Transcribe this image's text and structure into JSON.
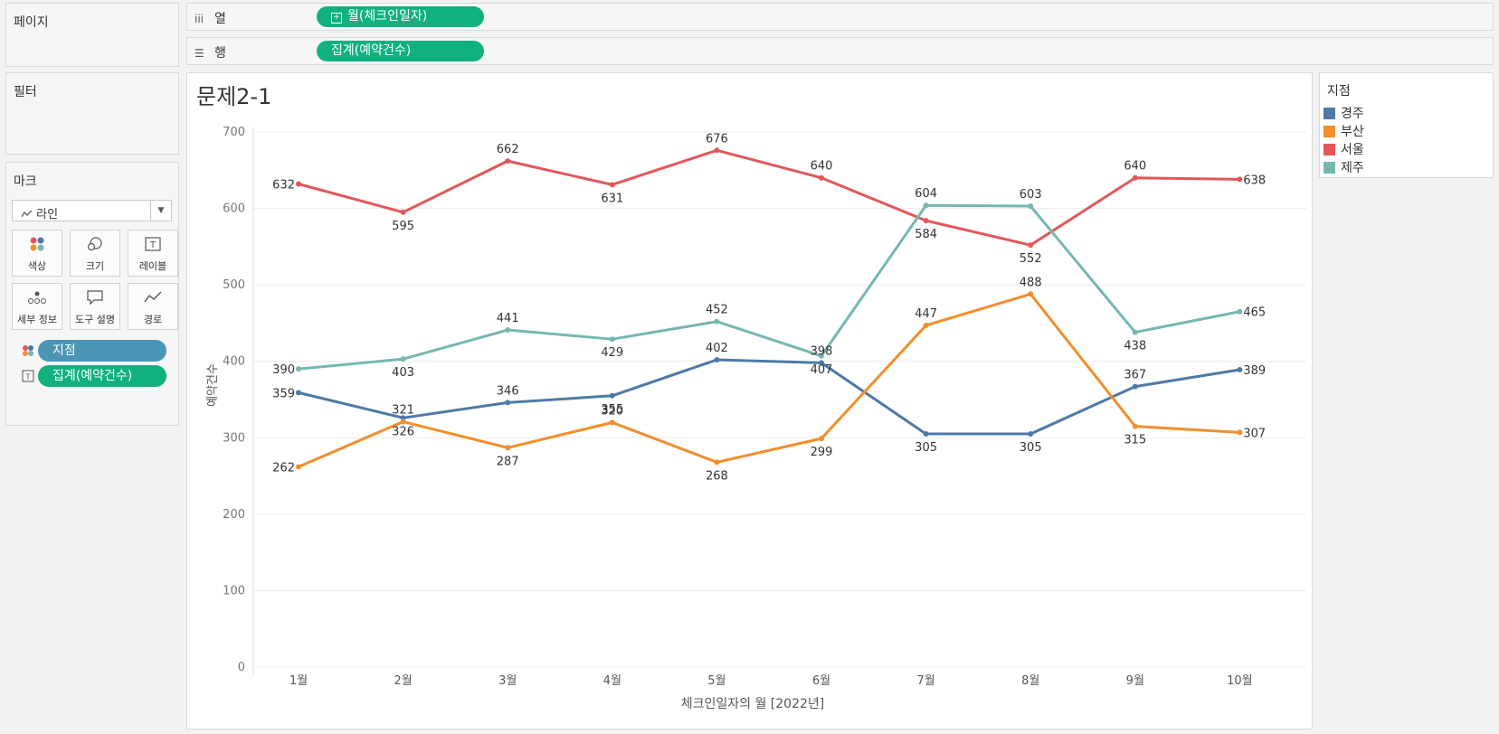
{
  "panes": {
    "pages": "페이지",
    "filters": "필터",
    "marks": "마크"
  },
  "shelves": {
    "columns": {
      "label": "열",
      "icon": "columns-icon",
      "pill": "월(체크인일자)"
    },
    "rows": {
      "label": "행",
      "icon": "rows-icon",
      "pill": "집계(예약건수)"
    }
  },
  "marks": {
    "type": "라인",
    "buttons": [
      "색상",
      "크기",
      "레이블",
      "세부 정보",
      "도구 설명",
      "경로"
    ],
    "fields": [
      "지점",
      "집계(예약건수)"
    ]
  },
  "legend": {
    "title": "지점",
    "items": [
      {
        "name": "경주",
        "color": "#4e79a7"
      },
      {
        "name": "부산",
        "color": "#f28e2b"
      },
      {
        "name": "서울",
        "color": "#e15759"
      },
      {
        "name": "제주",
        "color": "#76b7b2"
      }
    ]
  },
  "chart_data": {
    "type": "line",
    "title": "문제2-1",
    "xlabel": "체크인일자의 월 [2022년]",
    "ylabel": "예약건수",
    "categories": [
      "1월",
      "2월",
      "3월",
      "4월",
      "5월",
      "6월",
      "7월",
      "8월",
      "9월",
      "10월"
    ],
    "yticks": [
      "0",
      "100",
      "200",
      "300",
      "400",
      "500",
      "600",
      "700"
    ],
    "ylim": [
      0,
      700
    ],
    "grid": true,
    "series": [
      {
        "name": "경주",
        "color": "#4e79a7",
        "values": [
          359,
          326,
          346,
          355,
          402,
          398,
          305,
          305,
          367,
          389
        ]
      },
      {
        "name": "부산",
        "color": "#f28e2b",
        "values": [
          262,
          321,
          287,
          320,
          268,
          299,
          447,
          488,
          315,
          307
        ]
      },
      {
        "name": "서울",
        "color": "#e15759",
        "values": [
          632,
          595,
          662,
          631,
          676,
          640,
          584,
          552,
          640,
          638
        ]
      },
      {
        "name": "제주",
        "color": "#76b7b2",
        "values": [
          390,
          403,
          441,
          429,
          452,
          407,
          604,
          603,
          438,
          465
        ]
      }
    ]
  }
}
